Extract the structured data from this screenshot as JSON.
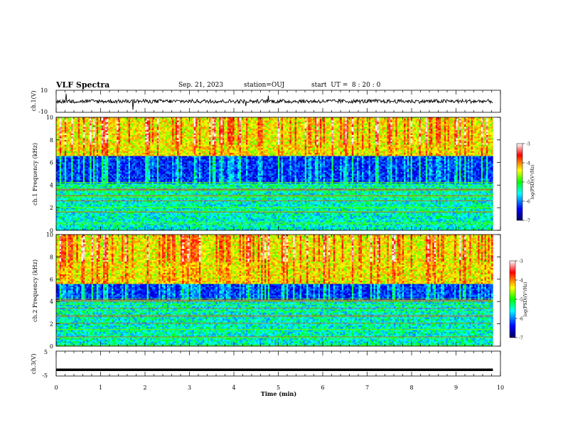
{
  "header": {
    "title": "VLF Spectra",
    "date": "Sep. 21, 2023",
    "station": "station=OUJ",
    "start": "start  UT =  8 : 20 : 0"
  },
  "colorbar": {
    "label": "log(PSD)(V²/Hz)",
    "ticks": [
      "-3",
      "-4",
      "-5",
      "-6",
      "-7"
    ],
    "colors": [
      "#ffffff",
      "#ff0000",
      "#ffff00",
      "#00ff00",
      "#00ffff",
      "#0000ff",
      "#000060"
    ]
  },
  "chart_data": [
    {
      "type": "line",
      "name": "ch1-waveform",
      "ylabel": "ch.1(V)",
      "ylim": [
        -10,
        10
      ],
      "yticks": [
        "10",
        "-10"
      ],
      "x_range_min": [
        0,
        9.83
      ],
      "level": 0,
      "grid": false
    },
    {
      "type": "heatmap",
      "name": "ch1-spectrogram",
      "ylabel": "ch.1 Frequency (kHz)",
      "ylim": [
        0,
        10
      ],
      "yticks": [
        "0",
        "2",
        "4",
        "6",
        "8",
        "10"
      ],
      "x_range_min": [
        0,
        9.83
      ],
      "color_range": [
        -7,
        -3
      ],
      "description_bands": [
        {
          "f_low": 6.5,
          "f_high": 10,
          "level": "high (green-yellow, bursts red)"
        },
        {
          "f_low": 4.2,
          "f_high": 6.5,
          "level": "low (dark blue)"
        },
        {
          "f_low": 0,
          "f_high": 4.2,
          "level": "medium (blue-cyan with green lines)"
        }
      ]
    },
    {
      "type": "heatmap",
      "name": "ch2-spectrogram",
      "ylabel": "ch.2 Frequency (kHz)",
      "ylim": [
        0,
        10
      ],
      "yticks": [
        "0",
        "2",
        "4",
        "6",
        "8",
        "10"
      ],
      "x_range_min": [
        0,
        9.83
      ],
      "color_range": [
        -7,
        -3
      ],
      "description_bands": [
        {
          "f_low": 5.5,
          "f_high": 10,
          "level": "high (green-yellow, bursts red)"
        },
        {
          "f_low": 4.2,
          "f_high": 5.5,
          "level": "low (dark blue)"
        },
        {
          "f_low": 0,
          "f_high": 4.2,
          "level": "medium (blue-cyan with red-green lines)"
        }
      ]
    },
    {
      "type": "line",
      "name": "ch3-waveform",
      "ylabel": "ch.3(V)",
      "ylim": [
        -5,
        5
      ],
      "yticks": [
        "5",
        "-5"
      ],
      "x_range_min": [
        0,
        9.83
      ],
      "level": -2.5,
      "grid": false
    }
  ],
  "xaxis": {
    "label": "Time (min)",
    "range": [
      0,
      10
    ],
    "ticks": [
      "0",
      "1",
      "2",
      "3",
      "4",
      "5",
      "6",
      "7",
      "8",
      "9",
      "10"
    ]
  }
}
